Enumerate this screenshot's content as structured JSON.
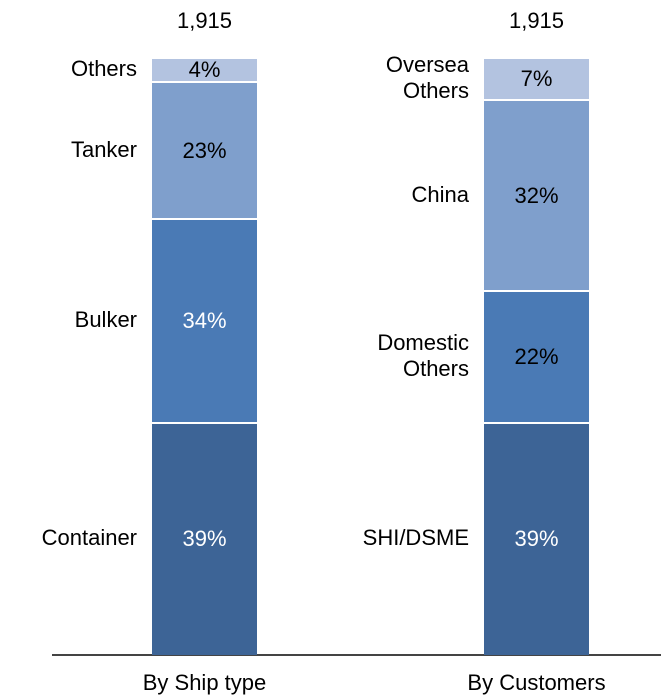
{
  "chart_data": {
    "type": "stacked-bar-100",
    "categories": [
      "By Ship type",
      "By Customers"
    ],
    "totals": [
      1915,
      1915
    ],
    "total_labels": [
      "1,915",
      "1,915"
    ],
    "stacks": [
      {
        "names": [
          "Container",
          "Bulker",
          "Tanker",
          "Others"
        ],
        "values": [
          39,
          34,
          23,
          4
        ],
        "value_labels": [
          "39%",
          "34%",
          "23%",
          "4%"
        ],
        "colors": [
          "#3d6496",
          "#4a7ab5",
          "#7f9fcc",
          "#b3c3e0"
        ],
        "label_colors": [
          "#ffffff",
          "#ffffff",
          "#000000",
          "#000000"
        ]
      },
      {
        "names": [
          "SHI/DSME",
          "Domestic Others",
          "China",
          "Oversea Others"
        ],
        "values": [
          39,
          22,
          32,
          7
        ],
        "value_labels": [
          "39%",
          "22%",
          "32%",
          "7%"
        ],
        "colors": [
          "#3d6496",
          "#4a7ab5",
          "#7f9fcc",
          "#b3c3e0"
        ],
        "label_colors": [
          "#ffffff",
          "#000000",
          "#000000",
          "#000000"
        ]
      }
    ]
  }
}
